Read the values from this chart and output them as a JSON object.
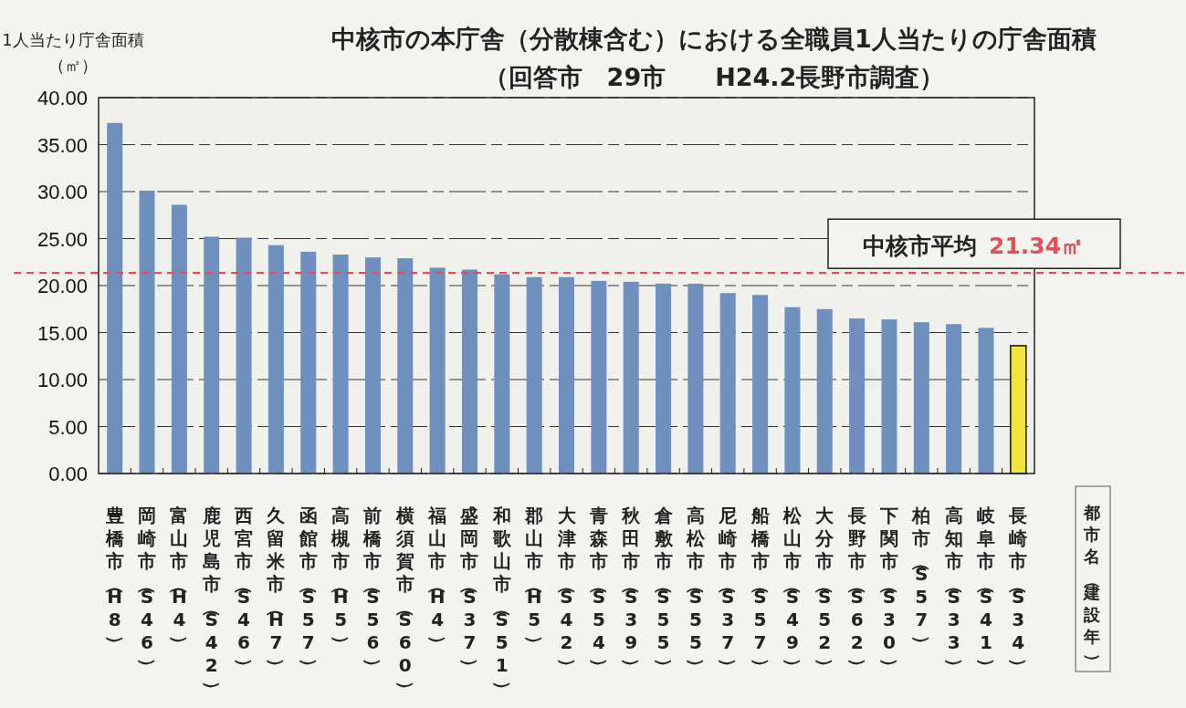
{
  "chart_data": {
    "type": "bar",
    "title": "中核市の本庁舎（分散棟含む）における全職員1人当たりの庁舎面積",
    "subtitle": "（回答市　29市　　H24.2長野市調査）",
    "ylabel": "1人当たり庁舎面積（㎡）",
    "xlabel": "都市名（建設年）",
    "categories": [
      "豊橋市（H8）",
      "岡崎市（S46）",
      "富山市（H4）",
      "鹿児島市（S42）",
      "西宮市（S46）",
      "久留米市（H7）",
      "函館市（S57）",
      "高槻市（H5）",
      "前橋市（S56）",
      "横須賀市（S60）",
      "福山市（H4）",
      "盛岡市（S37）",
      "和歌山市（S51）",
      "郡山市（H5）",
      "大津市（S42）",
      "青森市（S54）",
      "秋田市（S39）",
      "倉敷市（S55）",
      "高松市（S55）",
      "尼崎市（S37）",
      "船橋市（S57）",
      "松山市（S49）",
      "大分市（S52）",
      "長野市（S62）",
      "下関市（S30）",
      "柏市（S57）",
      "高知市（S33）",
      "岐阜市（S41）",
      "長崎市（S34）"
    ],
    "values": [
      37.3,
      30.1,
      28.6,
      25.2,
      25.1,
      24.3,
      23.6,
      23.3,
      23.0,
      22.9,
      21.9,
      21.7,
      21.2,
      20.9,
      20.9,
      20.5,
      20.4,
      20.2,
      20.2,
      19.2,
      19.0,
      17.7,
      17.5,
      16.5,
      16.4,
      16.1,
      15.9,
      15.5,
      13.6
    ],
    "colors": [
      "#6f8fbf",
      "#6f8fbf",
      "#6f8fbf",
      "#6f8fbf",
      "#6f8fbf",
      "#6f8fbf",
      "#6f8fbf",
      "#6f8fbf",
      "#6f8fbf",
      "#6f8fbf",
      "#6f8fbf",
      "#6f8fbf",
      "#6f8fbf",
      "#6f8fbf",
      "#6f8fbf",
      "#6f8fbf",
      "#6f8fbf",
      "#6f8fbf",
      "#6f8fbf",
      "#6f8fbf",
      "#6f8fbf",
      "#6f8fbf",
      "#6f8fbf",
      "#6f8fbf",
      "#6f8fbf",
      "#6f8fbf",
      "#6f8fbf",
      "#6f8fbf",
      "#f2e43c"
    ],
    "ylim": [
      0,
      40
    ],
    "yticks": [
      {
        "value": 0,
        "label": "0.00"
      },
      {
        "value": 5,
        "label": "5.00"
      },
      {
        "value": 10,
        "label": "10.00"
      },
      {
        "value": 15,
        "label": "15.00"
      },
      {
        "value": 20,
        "label": "20.00"
      },
      {
        "value": 25,
        "label": "25.00"
      },
      {
        "value": 30,
        "label": "30.00"
      },
      {
        "value": 35,
        "label": "35.00"
      },
      {
        "value": 40,
        "label": "40.00"
      }
    ],
    "grid": "y",
    "ref_lines": [
      {
        "axis": "y",
        "value": 21.34,
        "label": "中核市平均",
        "color": "#e0505a",
        "line_style": "dashed"
      }
    ],
    "annotations": [
      {
        "text": "21.34㎡",
        "y": 21.34
      }
    ]
  }
}
